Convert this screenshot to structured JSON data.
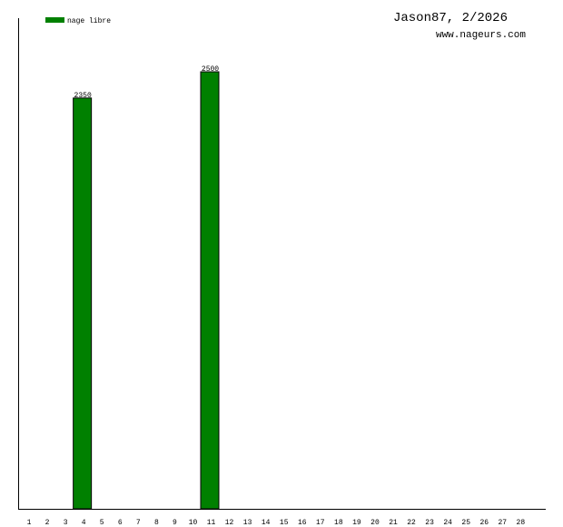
{
  "chart_data": {
    "type": "bar",
    "title": "Jason87, 2/2026",
    "subtitle": "www.nageurs.com",
    "categories": [
      "1",
      "2",
      "3",
      "4",
      "5",
      "6",
      "7",
      "8",
      "9",
      "10",
      "11",
      "12",
      "13",
      "14",
      "15",
      "16",
      "17",
      "18",
      "19",
      "20",
      "21",
      "22",
      "23",
      "24",
      "25",
      "26",
      "27",
      "28"
    ],
    "series": [
      {
        "name": "nage libre",
        "color": "#008000",
        "values": [
          null,
          null,
          null,
          2350,
          null,
          null,
          null,
          null,
          null,
          null,
          2500,
          null,
          null,
          null,
          null,
          null,
          null,
          null,
          null,
          null,
          null,
          null,
          null,
          null,
          null,
          null,
          null,
          null
        ]
      }
    ],
    "legend": "top-left"
  }
}
